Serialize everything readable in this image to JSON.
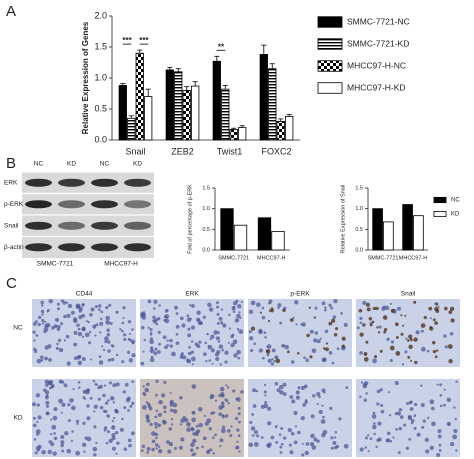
{
  "chart_data": [
    {
      "type": "bar",
      "ylabel": "Relative Expression of Genes",
      "categories": [
        "Snail",
        "ZEB2",
        "Twist1",
        "FOXC2"
      ],
      "series": [
        {
          "name": "SMMC-7721-NC",
          "color": "#000000",
          "values": [
            0.88,
            1.13,
            1.27,
            1.38
          ],
          "errors": [
            0.03,
            0.04,
            0.08,
            0.15
          ]
        },
        {
          "name": "SMMC-7721-KD",
          "color": "#000000",
          "fill_pattern": "stripes",
          "values": [
            0.35,
            1.1,
            0.82,
            1.15
          ],
          "errors": [
            0.04,
            0.05,
            0.06,
            0.08
          ]
        },
        {
          "name": "MHCC97-H-NC",
          "color": "#000000",
          "fill_pattern": "checker",
          "values": [
            1.4,
            0.8,
            0.17,
            0.3
          ],
          "errors": [
            0.05,
            0.06,
            0.02,
            0.04
          ]
        },
        {
          "name": "MHCC97-H-KD",
          "color": "#ffffff",
          "values": [
            0.7,
            0.87,
            0.2,
            0.38
          ],
          "errors": [
            0.12,
            0.07,
            0.03,
            0.03
          ]
        }
      ],
      "ylim": [
        0,
        2
      ],
      "yticks": [
        {
          "value": 0,
          "label": "0.0"
        },
        {
          "value": 0.5,
          "label": "0.5"
        },
        {
          "value": 1,
          "label": "1.0"
        },
        {
          "value": 1.5,
          "label": "1.5"
        },
        {
          "value": 2,
          "label": "2.0"
        }
      ],
      "annotations": [
        "***",
        "***",
        "**"
      ],
      "legend": "right"
    },
    {
      "type": "bar",
      "ylabel": "Fold of percentage of p-ERK",
      "categories": [
        "SMMC-7721",
        "MHCC97-H"
      ],
      "series": [
        {
          "color": "#000000",
          "values": [
            1.0,
            0.78
          ]
        },
        {
          "color": "#ffffff",
          "values": [
            0.6,
            0.45
          ]
        }
      ],
      "ylim": [
        0,
        1.5
      ],
      "yticks": [
        {
          "value": 0,
          "label": "0.0"
        },
        {
          "value": 0.5,
          "label": "0.5"
        },
        {
          "value": 1,
          "label": "1.0"
        },
        {
          "value": 1.5,
          "label": "1.5"
        }
      ]
    },
    {
      "type": "bar",
      "ylabel": "Relative Expression of Snail",
      "categories": [
        "SMMC-7721",
        "MHCC97-H"
      ],
      "series": [
        {
          "name": "NC",
          "color": "#000000",
          "values": [
            1.0,
            1.1
          ]
        },
        {
          "name": "KD",
          "color": "#ffffff",
          "values": [
            0.68,
            0.83
          ]
        }
      ],
      "ylim": [
        0,
        1.5
      ],
      "yticks": [
        {
          "value": 0,
          "label": "0.0"
        },
        {
          "value": 0.5,
          "label": "0.5"
        },
        {
          "value": 1,
          "label": "1.0"
        },
        {
          "value": 1.5,
          "label": "1.5"
        }
      ],
      "legend": "right"
    }
  ],
  "figure": {
    "panels": [
      "A",
      "B",
      "C"
    ],
    "blot": {
      "columns": [
        "NC",
        "KD",
        "NC",
        "KD"
      ],
      "rows": [
        "ERK",
        "p-ERK",
        "Snail",
        "β-actin"
      ],
      "groups": [
        "SMMC-7721",
        "MHCC97-H"
      ]
    },
    "histology": {
      "columns": [
        "CD44",
        "ERK",
        "p-ERK",
        "Snail"
      ],
      "rows": [
        "NC",
        "KD"
      ]
    }
  }
}
